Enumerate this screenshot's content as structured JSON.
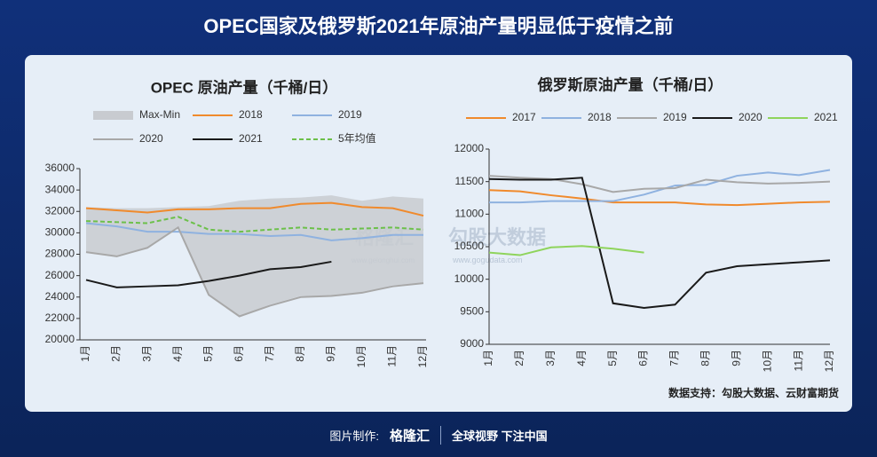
{
  "header": {
    "title": "OPEC国家及俄罗斯2021年原油产量明显低于疫情之前"
  },
  "chart_data": [
    {
      "type": "line",
      "title": "OPEC 原油产量（千桶/日）",
      "categories": [
        "1月",
        "2月",
        "3月",
        "4月",
        "5月",
        "6月",
        "7月",
        "8月",
        "9月",
        "10月",
        "11月",
        "12月"
      ],
      "ylim": [
        20000,
        36000
      ],
      "yticks": [
        20000,
        22000,
        24000,
        26000,
        28000,
        30000,
        32000,
        34000,
        36000
      ],
      "series": [
        {
          "name": "Max-Min",
          "type": "range",
          "color": "#c8cbd0",
          "values": [
            32400,
            32300,
            32300,
            32400,
            32500,
            33000,
            33200,
            33300,
            33500,
            33000,
            33400,
            33200
          ],
          "min": [
            28200,
            27800,
            28500,
            30500,
            24200,
            22200,
            23300,
            24100,
            24100,
            24400,
            25100,
            25300
          ]
        },
        {
          "name": "2018",
          "color": "#f08a2c",
          "values": [
            32300,
            32100,
            31900,
            32200,
            32200,
            32300,
            32300,
            32700,
            32800,
            32400,
            32300,
            31600
          ]
        },
        {
          "name": "2019",
          "color": "#8fb2e0",
          "values": [
            30900,
            30600,
            30100,
            30100,
            29900,
            29900,
            29700,
            29800,
            29300,
            29500,
            29800,
            29800
          ]
        },
        {
          "name": "2020",
          "color": "#a8a8a8",
          "values": [
            28200,
            27800,
            28600,
            30500,
            24200,
            22200,
            23200,
            24000,
            24100,
            24400,
            25000,
            25300
          ]
        },
        {
          "name": "2021",
          "color": "#1a1a1a",
          "values": [
            25600,
            24900,
            25000,
            25100,
            25500,
            26000,
            26600,
            26800,
            27300,
            null,
            null,
            null
          ]
        },
        {
          "name": "5年均值",
          "color": "#6cc04a",
          "dash": true,
          "values": [
            31100,
            31000,
            30900,
            31500,
            30300,
            30100,
            30300,
            30500,
            30300,
            30400,
            30500,
            30300
          ]
        }
      ]
    },
    {
      "type": "line",
      "title": "俄罗斯原油产量（千桶/日）",
      "categories": [
        "1月",
        "2月",
        "3月",
        "4月",
        "5月",
        "6月",
        "7月",
        "8月",
        "9月",
        "10月",
        "11月",
        "12月"
      ],
      "ylim": [
        9000,
        12000
      ],
      "yticks": [
        9000,
        9500,
        10000,
        10500,
        11000,
        11500,
        12000
      ],
      "series": [
        {
          "name": "2017",
          "color": "#f08a2c",
          "values": [
            11370,
            11350,
            11290,
            11240,
            11180,
            11180,
            11180,
            11150,
            11140,
            11160,
            11180,
            11190
          ]
        },
        {
          "name": "2018",
          "color": "#8fb2e0",
          "values": [
            11180,
            11180,
            11200,
            11200,
            11200,
            11300,
            11440,
            11450,
            11590,
            11640,
            11600,
            11680
          ]
        },
        {
          "name": "2019",
          "color": "#a8a8a8",
          "values": [
            11590,
            11560,
            11540,
            11460,
            11340,
            11390,
            11400,
            11530,
            11490,
            11470,
            11480,
            11500
          ]
        },
        {
          "name": "2020",
          "color": "#1a1a1a",
          "values": [
            11540,
            11530,
            11530,
            11560,
            9630,
            9560,
            9610,
            10100,
            10200,
            10230,
            10260,
            10290
          ]
        },
        {
          "name": "2021",
          "color": "#8fd45c",
          "values": [
            10410,
            10370,
            10490,
            10510,
            10470,
            10410,
            null,
            null,
            null,
            null,
            null,
            null
          ]
        }
      ],
      "source": "数据支持：勾股大数据、云财富期货"
    }
  ],
  "watermarks": [
    "格隆汇",
    "www.gelonghui.com",
    "勾股大数据",
    "www.gogudata.com"
  ],
  "footer": {
    "label": "图片制作:",
    "logo": "格隆汇",
    "slogan": "全球视野 下注中国"
  }
}
